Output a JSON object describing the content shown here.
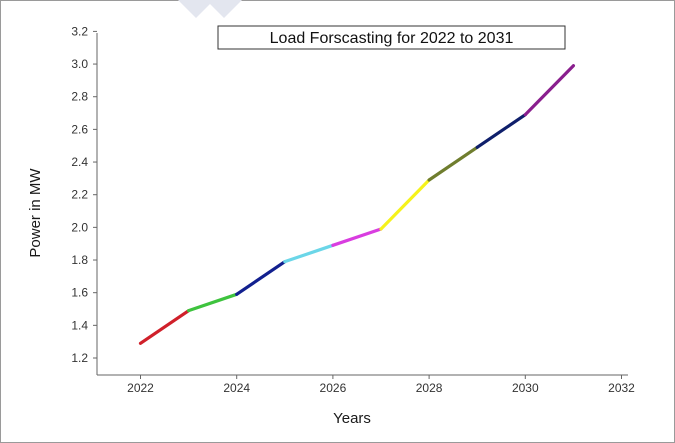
{
  "chart_data": {
    "type": "line",
    "title": "Load Forscasting for 2022 to 2031",
    "xlabel": "Years",
    "ylabel": "Power in MW",
    "xlim": [
      2021,
      2032
    ],
    "ylim": [
      1.15,
      3.2
    ],
    "xticks": [
      "2022",
      "2024",
      "2026",
      "2028",
      "2030",
      "2032"
    ],
    "yticks": [
      "1.2",
      "1.4",
      "1.6",
      "1.8",
      "2.0",
      "2.2",
      "2.4",
      "2.6",
      "2.8",
      "3.0",
      "3.2"
    ],
    "grid": false,
    "legend": "none",
    "x": [
      2022,
      2023,
      2024,
      2025,
      2026,
      2027,
      2028,
      2029,
      2030,
      2031
    ],
    "y": [
      1.29,
      1.49,
      1.59,
      1.79,
      1.89,
      1.99,
      2.29,
      2.49,
      2.69,
      2.99
    ],
    "segment_colors": [
      "#d0202a",
      "#3ec33e",
      "#12208f",
      "#6bd6e8",
      "#d93de0",
      "#f5f21c",
      "#6f7d2e",
      "#0f1f6b",
      "#8a1f8e"
    ]
  }
}
